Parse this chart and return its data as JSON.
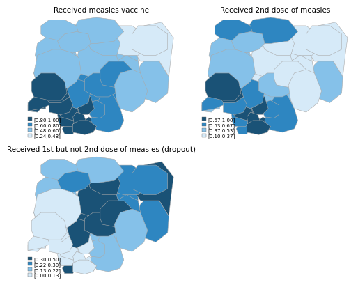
{
  "title1": "Received measles vaccine",
  "title2": "Received 2nd dose of measles",
  "title3": "Received 1st but not 2nd dose of measles (dropout)",
  "legend1": [
    "[0.80,1.00]",
    "[0.60,0.80]",
    "[0.48,0.60]",
    "[0.24,0.48]"
  ],
  "legend2": [
    "[0.67,1.00]",
    "[0.53,0.67]",
    "[0.37,0.53]",
    "[0.10,0.37]"
  ],
  "legend3": [
    "[0.30,0.50]",
    "[0.22,0.30]",
    "[0.13,0.22]",
    "[0.00,0.13]"
  ],
  "colors_4": [
    "#1a5276",
    "#2e86c1",
    "#85c1e9",
    "#d6eaf8"
  ],
  "border_color": "#aaaaaa",
  "border_lw": 0.4,
  "title_fontsize": 7.5,
  "legend_fontsize": 5.0,
  "fig_bg": "#ffffff",
  "map1_state_colors": {
    "Sokoto": 2,
    "Kebbi": 2,
    "Zamfara": 2,
    "Katsina": 2,
    "Kano": 2,
    "Jigawa": 3,
    "Yobe": 3,
    "Borno": 3,
    "Niger": 2,
    "Kaduna": 2,
    "Plateau": 1,
    "Adamawa": 2,
    "Taraba": 2,
    "Gombe": 2,
    "Bauchi": 2,
    "FCT": 1,
    "Nasarawa": 1,
    "Benue": 1,
    "Kogi": 1,
    "Kwara": 1,
    "Oyo": 0,
    "Osun": 0,
    "Ogun": 0,
    "Lagos": 0,
    "Ondo": 0,
    "Ekiti": 0,
    "Edo": 0,
    "Delta": 0,
    "Anambra": 0,
    "Enugu": 0,
    "Ebonyi": 1,
    "Imo": 0,
    "Abia": 0,
    "Rivers": 0,
    "Cross River": 1,
    "Akwa Ibom": 0,
    "Bayelsa": 0
  },
  "map2_state_colors": {
    "Sokoto": 1,
    "Kebbi": 2,
    "Zamfara": 2,
    "Katsina": 1,
    "Kano": 3,
    "Jigawa": 3,
    "Yobe": 3,
    "Borno": 3,
    "Niger": 2,
    "Kaduna": 3,
    "Plateau": 3,
    "Adamawa": 2,
    "Taraba": 3,
    "Gombe": 3,
    "Bauchi": 3,
    "FCT": 3,
    "Nasarawa": 2,
    "Benue": 2,
    "Kogi": 1,
    "Kwara": 2,
    "Oyo": 0,
    "Osun": 0,
    "Ogun": 1,
    "Lagos": 2,
    "Ondo": 1,
    "Ekiti": 1,
    "Edo": 0,
    "Delta": 1,
    "Anambra": 0,
    "Enugu": 0,
    "Ebonyi": 1,
    "Imo": 0,
    "Abia": 0,
    "Rivers": 0,
    "Cross River": 1,
    "Akwa Ibom": 0,
    "Bayelsa": 1
  },
  "map3_state_colors": {
    "Sokoto": 2,
    "Kebbi": 2,
    "Zamfara": 1,
    "Katsina": 2,
    "Kano": 0,
    "Jigawa": 1,
    "Yobe": 1,
    "Borno": 0,
    "Niger": 3,
    "Kaduna": 0,
    "Plateau": 0,
    "Adamawa": 1,
    "Taraba": 2,
    "Gombe": 1,
    "Bauchi": 1,
    "FCT": 0,
    "Nasarawa": 0,
    "Benue": 2,
    "Kogi": 0,
    "Kwara": 1,
    "Oyo": 3,
    "Osun": 3,
    "Ogun": 3,
    "Lagos": 3,
    "Ondo": 3,
    "Ekiti": 3,
    "Edo": 3,
    "Delta": 3,
    "Anambra": 3,
    "Enugu": 3,
    "Ebonyi": 2,
    "Imo": 3,
    "Abia": 3,
    "Rivers": 3,
    "Cross River": 2,
    "Akwa Ibom": 3,
    "Bayelsa": 0
  }
}
